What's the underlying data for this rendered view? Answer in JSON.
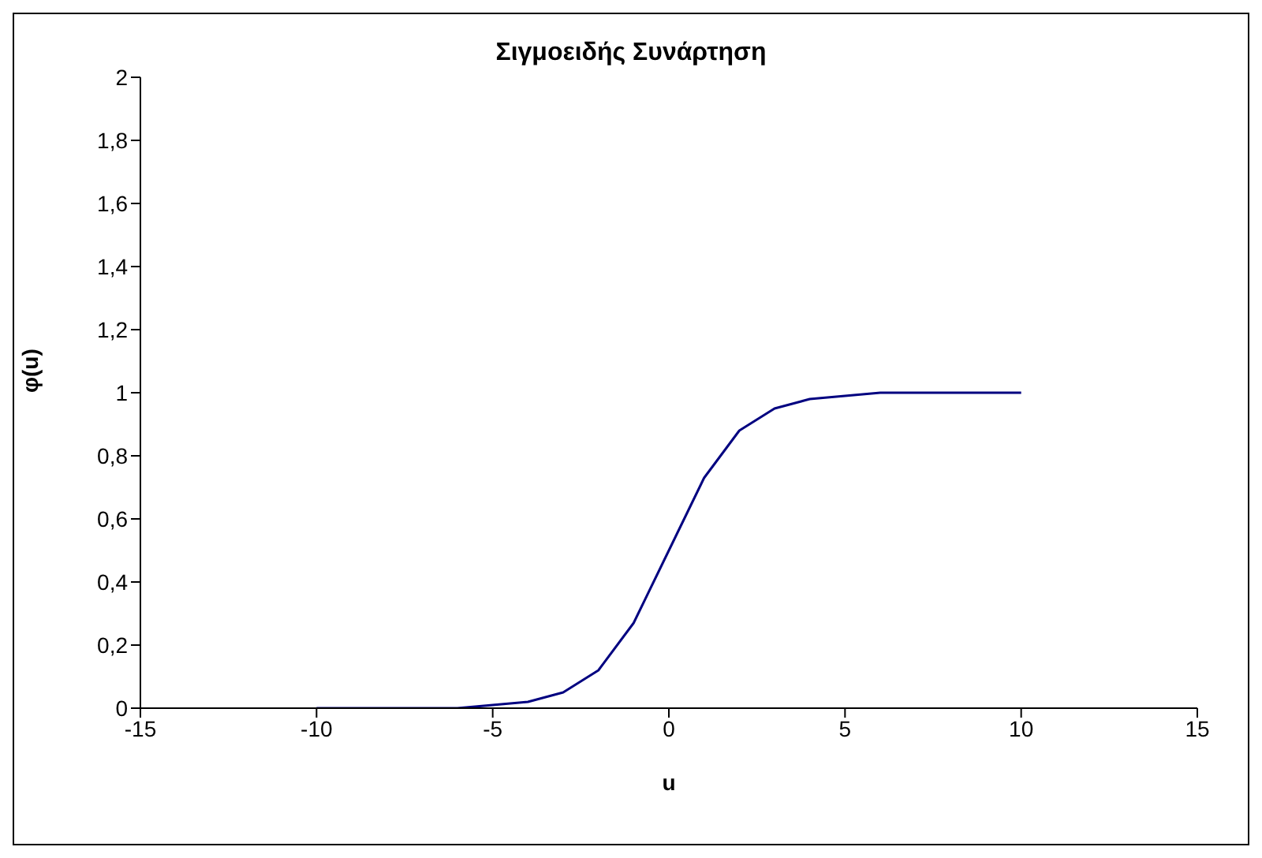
{
  "chart_data": {
    "type": "line",
    "title": "Σιγμοειδής Συνάρτηση",
    "xlabel": "u",
    "ylabel": "φ(u)",
    "x": [
      -10,
      -9,
      -8,
      -7,
      -6,
      -5,
      -4,
      -3,
      -2,
      -1,
      0,
      1,
      2,
      3,
      4,
      5,
      6,
      7,
      8,
      9,
      10
    ],
    "series": [
      {
        "color": "#000080",
        "values": [
          0,
          0,
          0,
          0,
          0,
          0.01,
          0.02,
          0.05,
          0.12,
          0.27,
          0.5,
          0.73,
          0.88,
          0.95,
          0.98,
          0.99,
          1,
          1,
          1,
          1,
          1
        ]
      }
    ],
    "xlim": [
      -15,
      15
    ],
    "xticks": [
      -15,
      -10,
      -5,
      0,
      5,
      10,
      15
    ],
    "ylim": [
      0,
      2
    ],
    "yticks": [
      0,
      {
        "value": 0.2,
        "label": "0,2"
      },
      {
        "value": 0.4,
        "label": "0,4"
      },
      {
        "value": 0.6,
        "label": "0,6"
      },
      {
        "value": 0.8,
        "label": "0,8"
      },
      1,
      {
        "value": 1.2,
        "label": "1,2"
      },
      {
        "value": 1.4,
        "label": "1,4"
      },
      {
        "value": 1.6,
        "label": "1,6"
      },
      {
        "value": 1.8,
        "label": "1,8"
      },
      2
    ],
    "grid": false,
    "legend": false,
    "marker": "none",
    "line_style": "solid"
  }
}
